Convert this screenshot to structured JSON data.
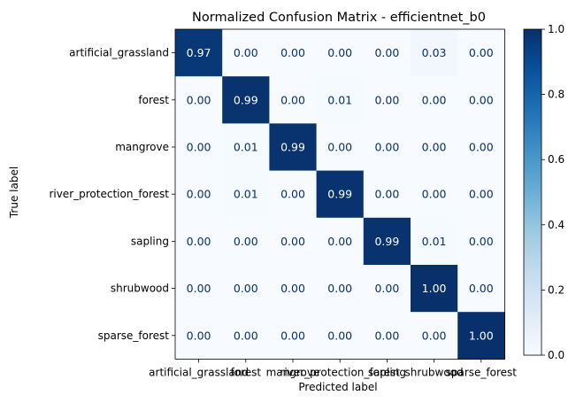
{
  "chart_data": {
    "type": "heatmap",
    "title": "Normalized Confusion Matrix - efficientnet_b0",
    "xlabel": "Predicted label",
    "ylabel": "True label",
    "row_labels": [
      "artificial_grassland",
      "forest",
      "mangrove",
      "river_protection_forest",
      "sapling",
      "shrubwood",
      "sparse_forest"
    ],
    "col_labels": [
      "artificial_grassland",
      "forest",
      "mangrove",
      "river_protection_forest",
      "sapling",
      "shrubwood",
      "sparse_forest"
    ],
    "values": [
      [
        0.97,
        0.0,
        0.0,
        0.0,
        0.0,
        0.03,
        0.0
      ],
      [
        0.0,
        0.99,
        0.0,
        0.01,
        0.0,
        0.0,
        0.0
      ],
      [
        0.0,
        0.01,
        0.99,
        0.0,
        0.0,
        0.0,
        0.0
      ],
      [
        0.0,
        0.01,
        0.0,
        0.99,
        0.0,
        0.0,
        0.0
      ],
      [
        0.0,
        0.0,
        0.0,
        0.0,
        0.99,
        0.01,
        0.0
      ],
      [
        0.0,
        0.0,
        0.0,
        0.0,
        0.0,
        1.0,
        0.0
      ],
      [
        0.0,
        0.0,
        0.0,
        0.0,
        0.0,
        0.0,
        1.0
      ]
    ],
    "value_labels": [
      [
        "0.97",
        "0.00",
        "0.00",
        "0.00",
        "0.00",
        "0.03",
        "0.00"
      ],
      [
        "0.00",
        "0.99",
        "0.00",
        "0.01",
        "0.00",
        "0.00",
        "0.00"
      ],
      [
        "0.00",
        "0.01",
        "0.99",
        "0.00",
        "0.00",
        "0.00",
        "0.00"
      ],
      [
        "0.00",
        "0.01",
        "0.00",
        "0.99",
        "0.00",
        "0.00",
        "0.00"
      ],
      [
        "0.00",
        "0.00",
        "0.00",
        "0.00",
        "0.99",
        "0.01",
        "0.00"
      ],
      [
        "0.00",
        "0.00",
        "0.00",
        "0.00",
        "0.00",
        "1.00",
        "0.00"
      ],
      [
        "0.00",
        "0.00",
        "0.00",
        "0.00",
        "0.00",
        "0.00",
        "1.00"
      ]
    ],
    "colormap": "Blues",
    "colorbar": {
      "range": [
        0.0,
        1.0
      ],
      "ticks": [
        0.0,
        0.2,
        0.4,
        0.6,
        0.8,
        1.0
      ],
      "tick_labels": [
        "0.0",
        "0.2",
        "0.4",
        "0.6",
        "0.8",
        "1.0"
      ]
    },
    "text_color_light": "#ffffff",
    "text_color_dark": "#08306b",
    "grid": false
  }
}
